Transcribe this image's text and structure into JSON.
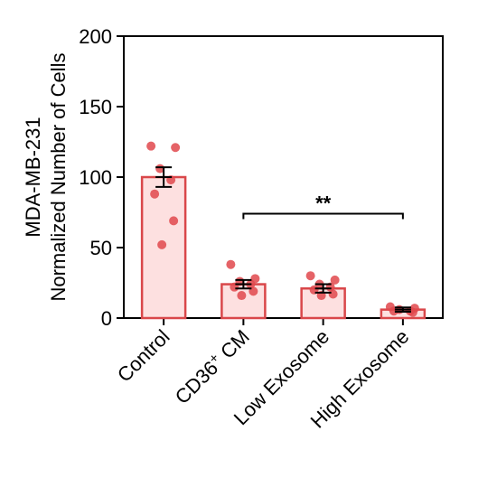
{
  "chart_data": {
    "type": "bar",
    "ylabel_line1": "MDA-MB-231",
    "ylabel_line2": "Normalized Number of Cells",
    "ylim": [
      0,
      200
    ],
    "yticks": [
      "0",
      "50",
      "100",
      "150",
      "200"
    ],
    "categories": [
      {
        "pre": "Control",
        "sup": "",
        "post": ""
      },
      {
        "pre": "CD36",
        "sup": "+",
        "post": " CM"
      },
      {
        "pre": "Low Exosome",
        "sup": "",
        "post": ""
      },
      {
        "pre": "High Exosome",
        "sup": "",
        "post": ""
      }
    ],
    "values": [
      100,
      24,
      21,
      6
    ],
    "errors": [
      7,
      3,
      3,
      1.5
    ],
    "points": [
      [
        122,
        121,
        106,
        98,
        88,
        69,
        52
      ],
      [
        38,
        28,
        26,
        24,
        22,
        19,
        16
      ],
      [
        30,
        27,
        24,
        22,
        20,
        17,
        16
      ],
      [
        8,
        7,
        6,
        5,
        5,
        4
      ]
    ],
    "significance": {
      "from": 1,
      "to": 3,
      "y": 74,
      "label": "**"
    },
    "colors": {
      "bar_fill": "#fde0e0",
      "bar_stroke": "#d9474a",
      "dot": "#e0484c",
      "axis": "#000000"
    }
  }
}
